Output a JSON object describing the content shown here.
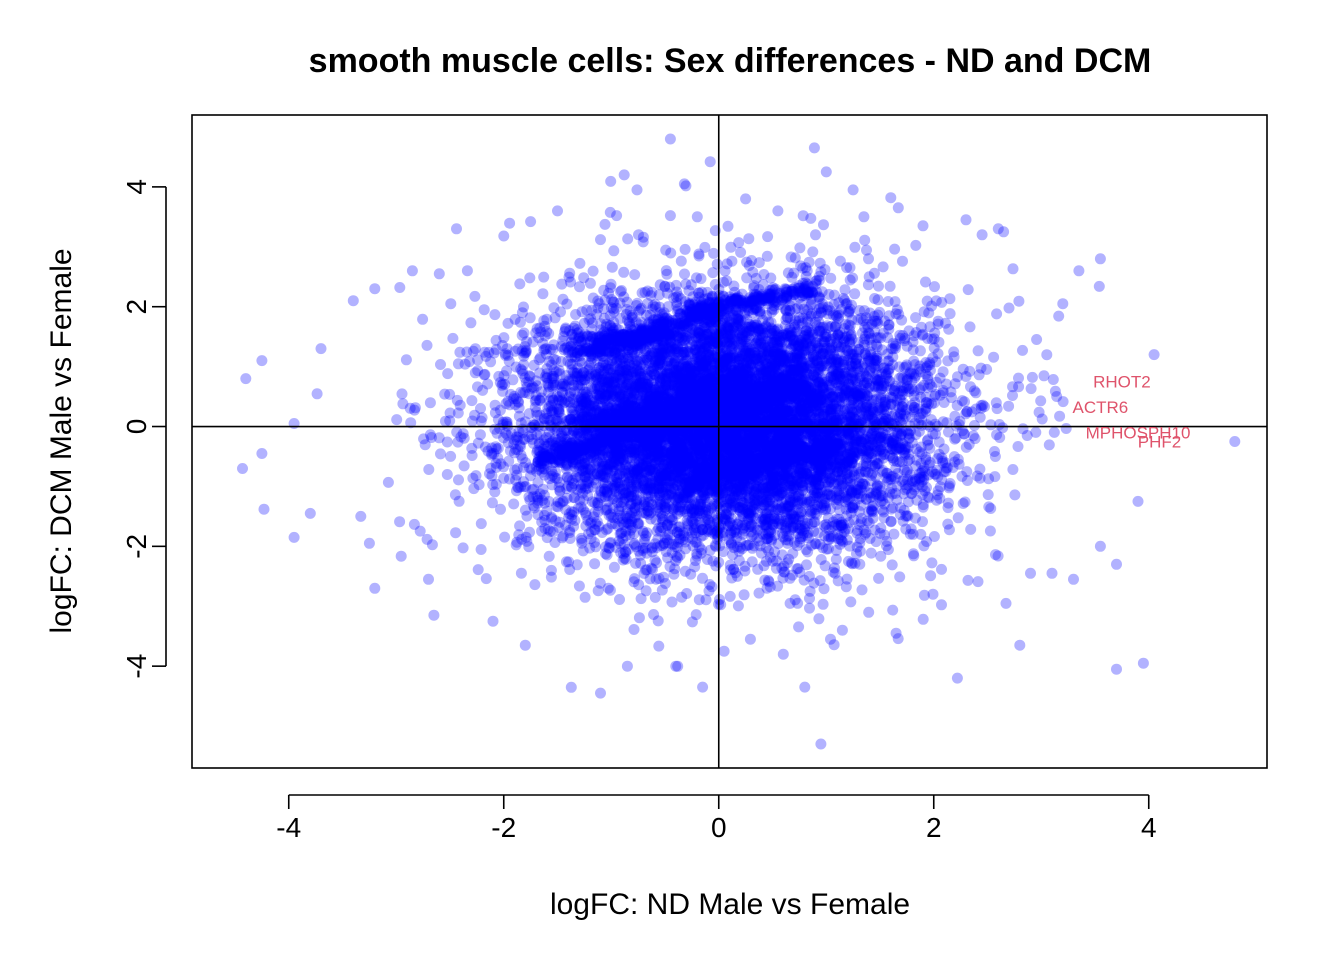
{
  "chart_data": {
    "type": "scatter",
    "title": "smooth muscle cells: Sex differences - ND and DCM",
    "xlabel": "logFC: ND Male vs Female",
    "ylabel": "logFC: DCM Male vs Female",
    "xlim": [
      -4.9,
      5.1
    ],
    "ylim": [
      -5.7,
      5.2
    ],
    "xticks": [
      -4,
      -2,
      0,
      2,
      4
    ],
    "yticks": [
      -4,
      -2,
      0,
      2,
      4
    ],
    "xtick_labels": [
      "-4",
      "-2",
      "0",
      "2",
      "4"
    ],
    "ytick_labels": [
      "-4",
      "-2",
      "0",
      "2",
      "4"
    ],
    "reference_lines": {
      "x": 0,
      "y": 0
    },
    "point_color": "#0000ff",
    "point_alpha": 0.3,
    "label_color": "#df536b",
    "grid": false,
    "highlighted_genes": [
      {
        "label": "RHOT2",
        "x": 3.75,
        "y": 0.75
      },
      {
        "label": "ACTR6",
        "x": 3.55,
        "y": 0.33
      },
      {
        "label": "MPHOSPH10",
        "x": 3.9,
        "y": -0.1
      },
      {
        "label": "PHF2",
        "x": 4.1,
        "y": -0.25
      }
    ],
    "cloud": {
      "center": [
        0.1,
        0.05
      ],
      "sd_x": 0.95,
      "sd_y": 1.05,
      "approx_points": 9000
    },
    "outliers": [
      [
        0.89,
        4.65
      ],
      [
        -0.45,
        4.8
      ],
      [
        -0.08,
        4.42
      ],
      [
        1.0,
        4.25
      ],
      [
        -0.88,
        4.2
      ],
      [
        -0.32,
        4.05
      ],
      [
        -0.76,
        3.95
      ],
      [
        1.25,
        3.95
      ],
      [
        1.6,
        3.82
      ],
      [
        0.25,
        3.8
      ],
      [
        -1.5,
        3.6
      ],
      [
        0.55,
        3.6
      ],
      [
        -0.95,
        3.52
      ],
      [
        -0.45,
        3.52
      ],
      [
        -0.2,
        3.5
      ],
      [
        2.3,
        3.45
      ],
      [
        -1.75,
        3.42
      ],
      [
        1.35,
        3.5
      ],
      [
        -2.44,
        3.3
      ],
      [
        2.6,
        3.3
      ],
      [
        2.45,
        3.2
      ],
      [
        -2.0,
        3.18
      ],
      [
        -1.1,
        3.12
      ],
      [
        3.55,
        2.8
      ],
      [
        3.35,
        2.6
      ],
      [
        -2.85,
        2.6
      ],
      [
        -3.7,
        1.3
      ],
      [
        -4.25,
        1.1
      ],
      [
        -4.4,
        0.8
      ],
      [
        -3.95,
        0.05
      ],
      [
        -4.43,
        -0.7
      ],
      [
        -4.25,
        -0.45
      ],
      [
        -4.23,
        -1.38
      ],
      [
        -3.95,
        -1.85
      ],
      [
        -3.8,
        -1.45
      ],
      [
        4.05,
        1.2
      ],
      [
        4.8,
        -0.25
      ],
      [
        3.9,
        -1.25
      ],
      [
        3.55,
        -2.0
      ],
      [
        3.3,
        -2.55
      ],
      [
        3.7,
        -2.3
      ],
      [
        3.95,
        -3.95
      ],
      [
        3.7,
        -4.05
      ],
      [
        2.8,
        -3.65
      ],
      [
        2.22,
        -4.2
      ],
      [
        0.8,
        -4.35
      ],
      [
        -1.1,
        -4.45
      ],
      [
        -0.15,
        -4.35
      ],
      [
        0.95,
        -5.3
      ],
      [
        -0.85,
        -4.0
      ],
      [
        -0.4,
        -4.0
      ],
      [
        0.05,
        -3.75
      ],
      [
        0.6,
        -3.8
      ],
      [
        1.15,
        -3.4
      ],
      [
        1.65,
        -3.45
      ],
      [
        -3.2,
        -2.7
      ],
      [
        -3.25,
        -1.95
      ],
      [
        -2.65,
        -3.15
      ],
      [
        -2.1,
        -3.25
      ],
      [
        -1.8,
        -3.65
      ],
      [
        2.9,
        -2.45
      ],
      [
        3.1,
        -2.45
      ],
      [
        3.2,
        2.05
      ],
      [
        -3.4,
        2.1
      ],
      [
        -3.2,
        2.3
      ],
      [
        -2.6,
        2.55
      ],
      [
        2.65,
        3.25
      ],
      [
        1.9,
        3.35
      ],
      [
        0.9,
        3.2
      ],
      [
        -2.7,
        -2.55
      ]
    ]
  }
}
